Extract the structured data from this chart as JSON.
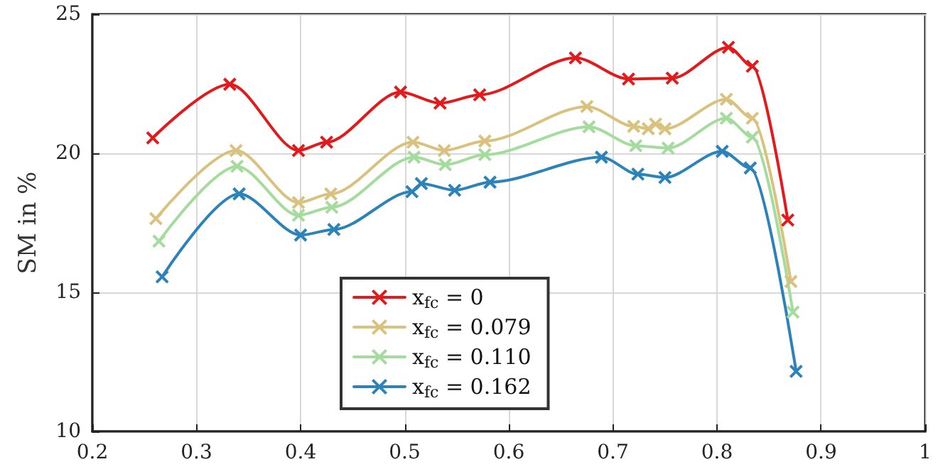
{
  "chart_data": {
    "type": "line",
    "ylabel": "SM in %",
    "xlim": [
      0.2,
      1
    ],
    "xticks": [
      0.2,
      0.3,
      0.4,
      0.5,
      0.6,
      0.7,
      0.8,
      0.9,
      1
    ],
    "ylim": [
      10,
      25
    ],
    "yticks": [
      10,
      15,
      20,
      25
    ],
    "grid": true,
    "legend": "bottom",
    "marker": "cross",
    "line_style": "solid",
    "series": [
      {
        "name": "x$_{fc}$ = 0",
        "color": "#e31a1c",
        "x": [
          0.258,
          0.332,
          0.398,
          0.425,
          0.496,
          0.534,
          0.572,
          0.664,
          0.715,
          0.757,
          0.811,
          0.834,
          0.868
        ],
        "values": [
          20.55,
          22.48,
          20.1,
          20.4,
          22.2,
          21.8,
          22.1,
          23.43,
          22.67,
          22.7,
          23.81,
          23.13,
          17.6
        ]
      },
      {
        "name": "x$_{fc}$ = 0.079",
        "color": "#d8c27e",
        "x": [
          0.261,
          0.338,
          0.398,
          0.429,
          0.508,
          0.538,
          0.577,
          0.675,
          0.72,
          0.734,
          0.741,
          0.75,
          0.809,
          0.834,
          0.871
        ],
        "values": [
          17.65,
          20.1,
          18.23,
          18.54,
          20.4,
          20.1,
          20.44,
          21.68,
          20.97,
          20.88,
          21.05,
          20.88,
          21.94,
          21.26,
          15.39
        ]
      },
      {
        "name": "x$_{fc}$ = 0.110",
        "color": "#a3dc9c",
        "x": [
          0.264,
          0.339,
          0.398,
          0.43,
          0.509,
          0.539,
          0.577,
          0.677,
          0.722,
          0.753,
          0.809,
          0.834,
          0.873
        ],
        "values": [
          16.84,
          19.53,
          17.77,
          18.06,
          19.86,
          19.59,
          19.95,
          20.95,
          20.27,
          20.19,
          21.26,
          20.58,
          14.29
        ]
      },
      {
        "name": "x$_{fc}$ = 0.162",
        "color": "#2b83ba",
        "x": [
          0.267,
          0.341,
          0.4,
          0.432,
          0.507,
          0.516,
          0.548,
          0.582,
          0.689,
          0.724,
          0.75,
          0.805,
          0.832,
          0.876
        ],
        "values": [
          15.56,
          18.54,
          17.06,
          17.26,
          18.62,
          18.91,
          18.67,
          18.96,
          19.86,
          19.25,
          19.13,
          20.07,
          19.47,
          12.16
        ]
      }
    ]
  }
}
